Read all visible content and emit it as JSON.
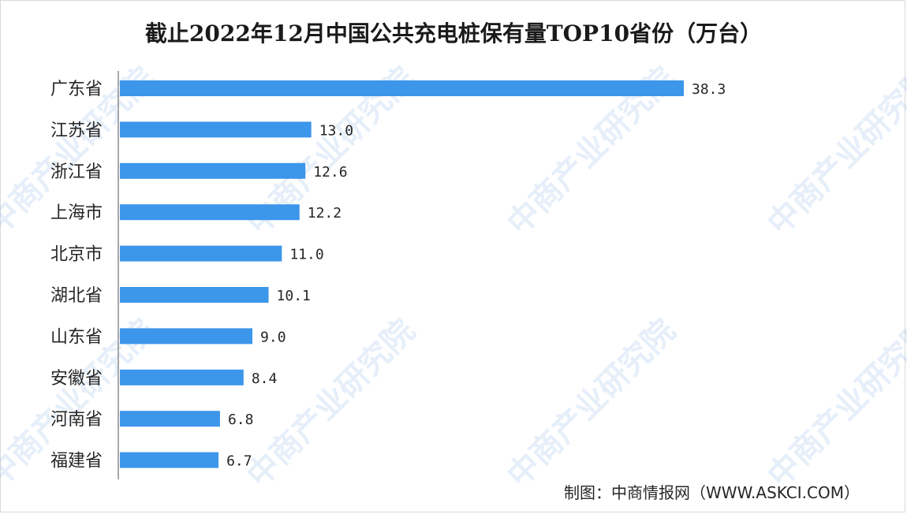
{
  "chart_data": {
    "type": "bar",
    "orientation": "horizontal",
    "title": "截止2022年12月中国公共充电桩保有量TOP10省份（万台）",
    "categories": [
      "广东省",
      "江苏省",
      "浙江省",
      "上海市",
      "北京市",
      "湖北省",
      "山东省",
      "安徽省",
      "河南省",
      "福建省"
    ],
    "values": [
      38.3,
      13.0,
      12.6,
      12.2,
      11.0,
      10.1,
      9.0,
      8.4,
      6.8,
      6.7
    ],
    "value_labels": [
      "38.3",
      "13.0",
      "12.6",
      "12.2",
      "11.0",
      "10.1",
      "9.0",
      "8.4",
      "6.8",
      "6.7"
    ],
    "xlim": [
      0,
      38.3
    ],
    "bar_color": "#3c96ea",
    "grid": false,
    "legend": "none"
  },
  "source": "制图：中商情报网（WWW.ASKCI.COM）",
  "watermark": "中商产业研究院"
}
